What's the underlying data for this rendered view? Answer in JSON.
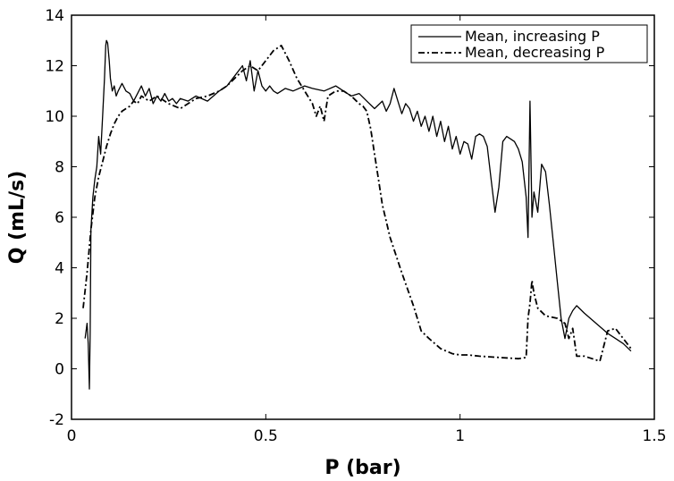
{
  "chart_data": {
    "type": "line",
    "title": "",
    "xlabel": "P (bar)",
    "ylabel": "Q (mL/s)",
    "xlim": [
      0,
      1.5
    ],
    "ylim": [
      -2,
      14
    ],
    "xticks": [
      0,
      0.5,
      1,
      1.5
    ],
    "xtick_labels": [
      "0",
      "0.5",
      "1",
      "1.5"
    ],
    "yticks": [
      -2,
      0,
      2,
      4,
      6,
      8,
      10,
      12,
      14
    ],
    "ytick_labels": [
      "-2",
      "0",
      "2",
      "4",
      "6",
      "8",
      "10",
      "12",
      "14"
    ],
    "grid": false,
    "legend_position": "top-right",
    "series": [
      {
        "name": "Mean, increasing P",
        "style": "solid",
        "color": "#000000",
        "x": [
          0.035,
          0.04,
          0.043,
          0.046,
          0.048,
          0.05,
          0.055,
          0.06,
          0.065,
          0.07,
          0.075,
          0.08,
          0.085,
          0.088,
          0.09,
          0.093,
          0.097,
          0.1,
          0.105,
          0.11,
          0.115,
          0.12,
          0.13,
          0.14,
          0.15,
          0.16,
          0.17,
          0.18,
          0.19,
          0.2,
          0.21,
          0.22,
          0.23,
          0.24,
          0.25,
          0.26,
          0.27,
          0.28,
          0.3,
          0.32,
          0.35,
          0.38,
          0.4,
          0.42,
          0.44,
          0.45,
          0.46,
          0.47,
          0.48,
          0.49,
          0.5,
          0.51,
          0.52,
          0.53,
          0.55,
          0.57,
          0.6,
          0.62,
          0.65,
          0.68,
          0.7,
          0.72,
          0.74,
          0.76,
          0.78,
          0.8,
          0.81,
          0.82,
          0.83,
          0.84,
          0.85,
          0.86,
          0.87,
          0.88,
          0.89,
          0.9,
          0.91,
          0.92,
          0.93,
          0.94,
          0.95,
          0.96,
          0.97,
          0.98,
          0.99,
          1.0,
          1.01,
          1.02,
          1.03,
          1.04,
          1.05,
          1.06,
          1.07,
          1.08,
          1.09,
          1.1,
          1.11,
          1.12,
          1.13,
          1.14,
          1.15,
          1.16,
          1.17,
          1.175,
          1.18,
          1.185,
          1.19,
          1.2,
          1.21,
          1.22,
          1.23,
          1.24,
          1.25,
          1.26,
          1.27,
          1.28,
          1.29,
          1.3,
          1.32,
          1.35,
          1.38,
          1.4,
          1.42,
          1.44
        ],
        "y": [
          1.2,
          1.8,
          1.0,
          -0.8,
          1.5,
          5.5,
          6.8,
          7.5,
          8.0,
          9.2,
          8.5,
          10.0,
          11.5,
          12.8,
          13.0,
          12.9,
          12.2,
          11.5,
          11.0,
          11.2,
          10.8,
          11.0,
          11.3,
          11.0,
          10.9,
          10.6,
          10.9,
          11.2,
          10.8,
          11.1,
          10.5,
          10.8,
          10.6,
          10.9,
          10.6,
          10.7,
          10.5,
          10.7,
          10.6,
          10.8,
          10.6,
          11.0,
          11.2,
          11.6,
          12.0,
          11.4,
          12.2,
          11.0,
          11.8,
          11.2,
          11.0,
          11.2,
          11.0,
          10.9,
          11.1,
          11.0,
          11.2,
          11.1,
          11.0,
          11.2,
          11.0,
          10.8,
          10.9,
          10.6,
          10.3,
          10.6,
          10.2,
          10.5,
          11.1,
          10.6,
          10.1,
          10.5,
          10.3,
          9.8,
          10.2,
          9.6,
          10.0,
          9.4,
          10.0,
          9.2,
          9.8,
          9.0,
          9.6,
          8.7,
          9.2,
          8.5,
          9.0,
          8.9,
          8.3,
          9.2,
          9.3,
          9.2,
          8.8,
          7.5,
          6.2,
          7.2,
          9.0,
          9.2,
          9.1,
          9.0,
          8.7,
          8.2,
          6.8,
          5.2,
          10.6,
          6.0,
          7.0,
          6.2,
          8.1,
          7.8,
          6.5,
          5.0,
          3.5,
          2.0,
          1.2,
          2.0,
          2.3,
          2.5,
          2.2,
          1.8,
          1.4,
          1.2,
          1.0,
          0.7
        ]
      },
      {
        "name": "Mean, decreasing P",
        "style": "dashdot",
        "color": "#000000",
        "x": [
          0.03,
          0.04,
          0.05,
          0.06,
          0.07,
          0.08,
          0.09,
          0.1,
          0.11,
          0.12,
          0.13,
          0.14,
          0.15,
          0.16,
          0.17,
          0.18,
          0.2,
          0.22,
          0.25,
          0.28,
          0.3,
          0.32,
          0.35,
          0.38,
          0.4,
          0.42,
          0.44,
          0.46,
          0.48,
          0.5,
          0.52,
          0.54,
          0.56,
          0.58,
          0.6,
          0.62,
          0.63,
          0.64,
          0.65,
          0.66,
          0.68,
          0.7,
          0.72,
          0.74,
          0.75,
          0.76,
          0.77,
          0.78,
          0.79,
          0.8,
          0.82,
          0.85,
          0.88,
          0.9,
          0.92,
          0.95,
          0.98,
          1.0,
          1.02,
          1.05,
          1.1,
          1.15,
          1.17,
          1.175,
          1.18,
          1.185,
          1.19,
          1.2,
          1.22,
          1.25,
          1.27,
          1.28,
          1.29,
          1.3,
          1.32,
          1.34,
          1.36,
          1.38,
          1.4,
          1.42,
          1.44
        ],
        "y": [
          2.4,
          3.8,
          5.5,
          6.8,
          7.6,
          8.2,
          8.8,
          9.3,
          9.7,
          10.0,
          10.2,
          10.3,
          10.4,
          10.6,
          10.5,
          10.8,
          10.6,
          10.8,
          10.5,
          10.3,
          10.5,
          10.7,
          10.8,
          11.0,
          11.2,
          11.5,
          11.8,
          12.0,
          11.8,
          12.2,
          12.6,
          12.8,
          12.2,
          11.5,
          11.0,
          10.5,
          10.0,
          10.4,
          9.8,
          10.8,
          11.0,
          11.0,
          10.8,
          10.5,
          10.4,
          10.2,
          9.5,
          8.5,
          7.5,
          6.5,
          5.2,
          3.8,
          2.5,
          1.5,
          1.2,
          0.8,
          0.6,
          0.55,
          0.55,
          0.5,
          0.45,
          0.4,
          0.45,
          2.0,
          2.6,
          3.5,
          3.0,
          2.4,
          2.1,
          2.0,
          1.8,
          1.2,
          1.6,
          0.5,
          0.5,
          0.4,
          0.3,
          1.5,
          1.6,
          1.2,
          0.8
        ]
      }
    ]
  }
}
